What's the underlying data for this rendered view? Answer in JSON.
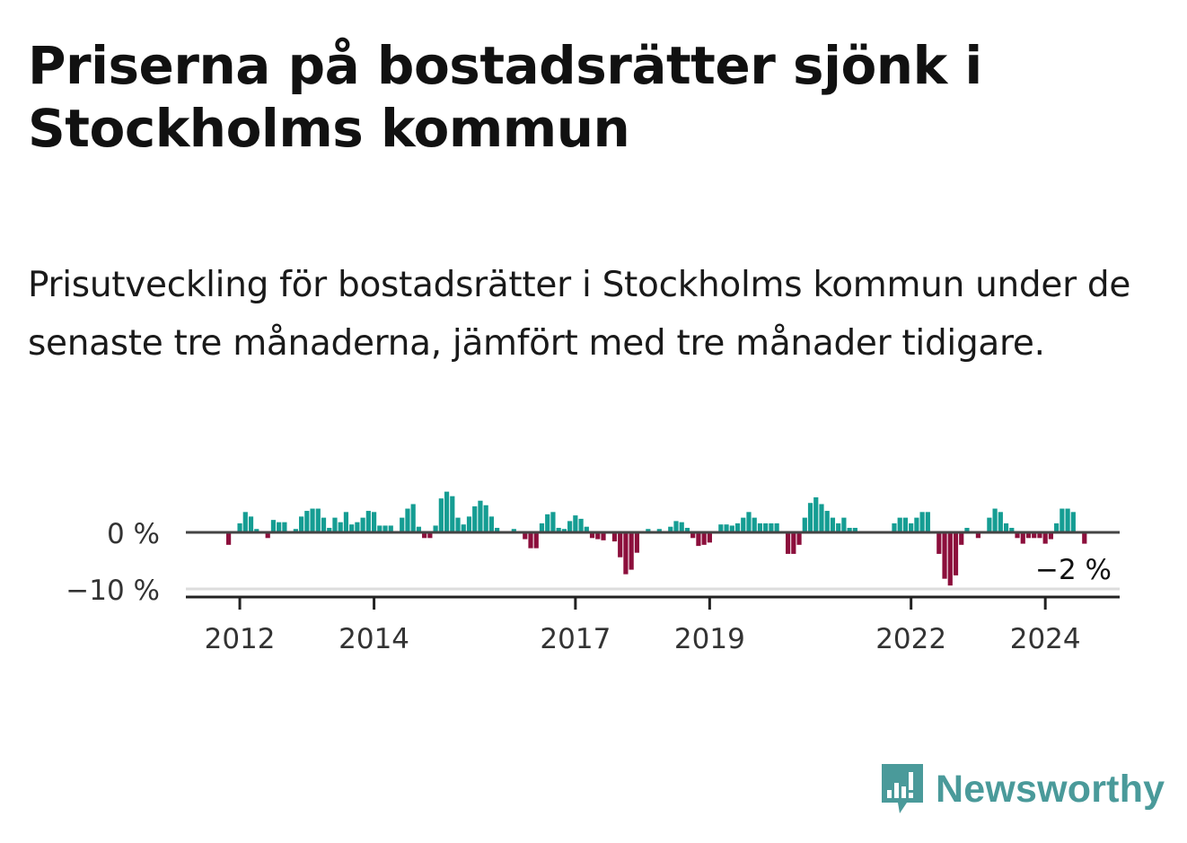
{
  "title": "Priserna på bostadsrätter sjönk i Stockholms kommun",
  "subtitle": "Prisutveckling för bostadsrätter i Stockholms kommun under de senaste tre månaderna, jämfört med tre månader tidigare.",
  "logo": {
    "text": "Newsworthy",
    "icon": "newsworthy-logo-icon",
    "color": "#4a9a9a"
  },
  "colors": {
    "positive": "#159d93",
    "negative": "#8c0f3c",
    "axis": "#444444",
    "grid": "#dddddd"
  },
  "chart_data": {
    "type": "bar",
    "title": "Priserna på bostadsrätter sjönk i Stockholms kommun",
    "xlabel": "",
    "ylabel": "",
    "start": [
      2011,
      11
    ],
    "ylim": [
      -11,
      8
    ],
    "y_ticks": [
      {
        "value": 0,
        "label": "0 %"
      },
      {
        "value": -10,
        "label": "−10 %"
      }
    ],
    "x_ticks": [
      {
        "year": 2012,
        "label": "2012"
      },
      {
        "year": 2014,
        "label": "2014"
      },
      {
        "year": 2017,
        "label": "2017"
      },
      {
        "year": 2019,
        "label": "2019"
      },
      {
        "year": 2022,
        "label": "2022"
      },
      {
        "year": 2024,
        "label": "2024"
      }
    ],
    "values": [
      -2.2,
      0,
      1.6,
      3.6,
      2.8,
      0.6,
      0,
      -1.0,
      2.2,
      1.8,
      1.8,
      0,
      0.6,
      2.8,
      3.8,
      4.2,
      4.2,
      2.6,
      0.8,
      2.6,
      1.8,
      3.6,
      1.4,
      1.8,
      2.6,
      3.8,
      3.6,
      1.2,
      1.2,
      1.2,
      0,
      2.6,
      4.2,
      5.0,
      1.0,
      -1.0,
      -1.0,
      1.2,
      6.0,
      7.2,
      6.4,
      2.6,
      1.4,
      2.8,
      4.6,
      5.6,
      4.8,
      2.8,
      0.8,
      0,
      0,
      0.6,
      0,
      -1.2,
      -2.8,
      -2.8,
      1.6,
      3.2,
      3.6,
      0.8,
      0.6,
      2.0,
      3.0,
      2.4,
      1.0,
      -1.0,
      -1.2,
      -1.4,
      0,
      -1.6,
      -4.4,
      -7.4,
      -6.6,
      -3.6,
      0,
      0.6,
      0,
      0.6,
      0,
      1.0,
      2.0,
      1.8,
      0.8,
      -1.0,
      -2.4,
      -2.2,
      -1.8,
      0,
      1.4,
      1.4,
      1.2,
      1.6,
      2.6,
      3.6,
      2.6,
      1.6,
      1.6,
      1.6,
      1.6,
      0,
      -3.8,
      -3.8,
      -2.2,
      2.6,
      5.2,
      6.2,
      5.0,
      3.8,
      2.6,
      1.6,
      2.6,
      0.8,
      0.8,
      0,
      0,
      0,
      0,
      0,
      0,
      1.6,
      2.6,
      2.6,
      1.6,
      2.6,
      3.6,
      3.6,
      0,
      -3.8,
      -8.2,
      -9.4,
      -7.6,
      -2.2,
      0.8,
      0,
      -1.0,
      0,
      2.6,
      4.2,
      3.6,
      1.6,
      0.8,
      -1.0,
      -2.0,
      -1.0,
      -1.0,
      -1.0,
      -2.0,
      -1.2,
      1.6,
      4.2,
      4.2,
      3.6,
      0,
      -2.0
    ],
    "last_value_label": "−2 %",
    "annotations": [
      "−2 %"
    ]
  }
}
